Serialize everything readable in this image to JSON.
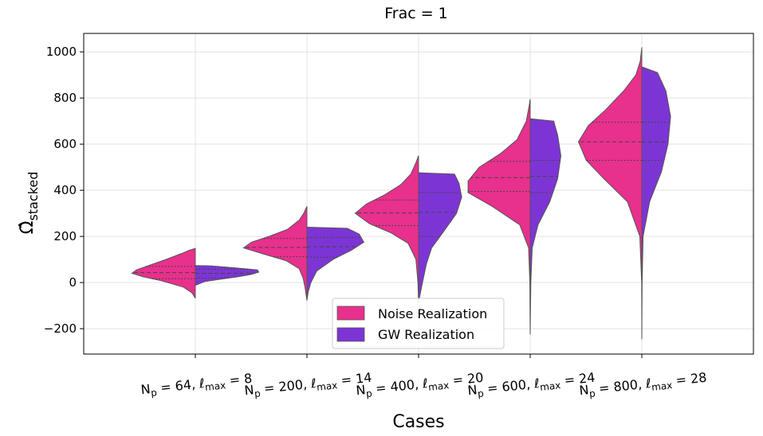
{
  "chart_data": {
    "type": "violin",
    "title": "Frac = 1",
    "xlabel": "Cases",
    "ylabel": "Ω̂",
    "ylabel_sub": "stacked",
    "ylim": [
      -310,
      1080
    ],
    "yticks": [
      -200,
      0,
      200,
      400,
      600,
      800,
      1000
    ],
    "ytick_labels": [
      "−200",
      "0",
      "200",
      "400",
      "600",
      "800",
      "1000"
    ],
    "grid": true,
    "legend_position": "lower-center",
    "categories": [
      {
        "np": "64",
        "lmax": "8"
      },
      {
        "np": "200",
        "lmax": "14"
      },
      {
        "np": "400",
        "lmax": "20"
      },
      {
        "np": "600",
        "lmax": "24"
      },
      {
        "np": "800",
        "lmax": "28"
      }
    ],
    "category_text": {
      "n": "N",
      "p": "p",
      "eq": " = ",
      "ell": "ℓ",
      "max": "max"
    },
    "series": [
      {
        "name": "Noise Realization",
        "color": "#e8308d",
        "side": "left",
        "violins": [
          {
            "profile": [
              [
                -68,
                0
              ],
              [
                -45,
                0.05
              ],
              [
                -20,
                0.18
              ],
              [
                10,
                0.55
              ],
              [
                25,
                0.8
              ],
              [
                40,
                0.97
              ],
              [
                55,
                0.9
              ],
              [
                75,
                0.7
              ],
              [
                100,
                0.45
              ],
              [
                125,
                0.22
              ],
              [
                140,
                0.09
              ],
              [
                148,
                0
              ]
            ],
            "quartiles": [
              17,
              43,
              70
            ]
          },
          {
            "profile": [
              [
                -78,
                0
              ],
              [
                -20,
                0.03
              ],
              [
                20,
                0.06
              ],
              [
                60,
                0.12
              ],
              [
                95,
                0.32
              ],
              [
                125,
                0.68
              ],
              [
                150,
                0.97
              ],
              [
                175,
                0.85
              ],
              [
                200,
                0.58
              ],
              [
                230,
                0.3
              ],
              [
                270,
                0.12
              ],
              [
                300,
                0.05
              ],
              [
                330,
                0
              ]
            ],
            "quartiles": [
              112,
              152,
              191
            ]
          },
          {
            "profile": [
              [
                -90,
                0
              ],
              [
                0,
                0.01
              ],
              [
                100,
                0.04
              ],
              [
                170,
                0.16
              ],
              [
                215,
                0.42
              ],
              [
                255,
                0.75
              ],
              [
                300,
                0.97
              ],
              [
                340,
                0.8
              ],
              [
                380,
                0.52
              ],
              [
                425,
                0.27
              ],
              [
                470,
                0.12
              ],
              [
                520,
                0.04
              ],
              [
                550,
                0
              ]
            ],
            "quartiles": [
              247,
              302,
              358
            ]
          },
          {
            "profile": [
              [
                -225,
                0
              ],
              [
                0,
                0.005
              ],
              [
                150,
                0.025
              ],
              [
                250,
                0.16
              ],
              [
                330,
                0.58
              ],
              [
                390,
                0.95
              ],
              [
                440,
                0.95
              ],
              [
                500,
                0.78
              ],
              [
                560,
                0.45
              ],
              [
                620,
                0.2
              ],
              [
                700,
                0.06
              ],
              [
                760,
                0.02
              ],
              [
                795,
                0
              ]
            ],
            "quartiles": [
              395,
              455,
              525
            ]
          },
          {
            "profile": [
              [
                -245,
                0
              ],
              [
                0,
                0.003
              ],
              [
                200,
                0.03
              ],
              [
                350,
                0.22
              ],
              [
                450,
                0.58
              ],
              [
                530,
                0.85
              ],
              [
                610,
                0.97
              ],
              [
                680,
                0.82
              ],
              [
                750,
                0.55
              ],
              [
                830,
                0.28
              ],
              [
                900,
                0.09
              ],
              [
                960,
                0.025
              ],
              [
                1020,
                0
              ]
            ],
            "quartiles": [
              530,
              610,
              695
            ]
          }
        ]
      },
      {
        "name": "GW Realization",
        "color": "#7c35d4",
        "side": "right",
        "violins": [
          {
            "profile": [
              [
                -12,
                0
              ],
              [
                5,
                0.15
              ],
              [
                15,
                0.4
              ],
              [
                25,
                0.65
              ],
              [
                35,
                0.85
              ],
              [
                45,
                0.97
              ],
              [
                55,
                0.95
              ],
              [
                65,
                0.55
              ],
              [
                72,
                0.25
              ],
              [
                74,
                0
              ]
            ],
            "quartiles": [
              20,
              40,
              58
            ]
          },
          {
            "profile": [
              [
                -78,
                0
              ],
              [
                -40,
                0.02
              ],
              [
                0,
                0.06
              ],
              [
                50,
                0.15
              ],
              [
                100,
                0.4
              ],
              [
                140,
                0.68
              ],
              [
                175,
                0.87
              ],
              [
                210,
                0.8
              ],
              [
                235,
                0.62
              ],
              [
                240,
                0
              ]
            ],
            "quartiles": [
              110,
              155,
              195
            ]
          },
          {
            "profile": [
              [
                -85,
                0
              ],
              [
                0,
                0.06
              ],
              [
                80,
                0.12
              ],
              [
                150,
                0.2
              ],
              [
                220,
                0.38
              ],
              [
                300,
                0.58
              ],
              [
                370,
                0.66
              ],
              [
                430,
                0.62
              ],
              [
                470,
                0.55
              ],
              [
                476,
                0
              ]
            ],
            "quartiles": [
              200,
              305,
              390
            ]
          },
          {
            "profile": [
              [
                -225,
                0
              ],
              [
                0,
                0.01
              ],
              [
                150,
                0.03
              ],
              [
                250,
                0.12
              ],
              [
                350,
                0.3
              ],
              [
                450,
                0.42
              ],
              [
                550,
                0.47
              ],
              [
                640,
                0.42
              ],
              [
                700,
                0.36
              ],
              [
                710,
                0
              ]
            ],
            "quartiles": [
              390,
              460,
              530
            ]
          },
          {
            "profile": [
              [
                -245,
                0
              ],
              [
                0,
                0.005
              ],
              [
                200,
                0.02
              ],
              [
                350,
                0.12
              ],
              [
                480,
                0.3
              ],
              [
                600,
                0.4
              ],
              [
                720,
                0.44
              ],
              [
                830,
                0.37
              ],
              [
                910,
                0.24
              ],
              [
                935,
                0
              ]
            ],
            "quartiles": [
              530,
              610,
              695
            ]
          }
        ]
      }
    ]
  }
}
